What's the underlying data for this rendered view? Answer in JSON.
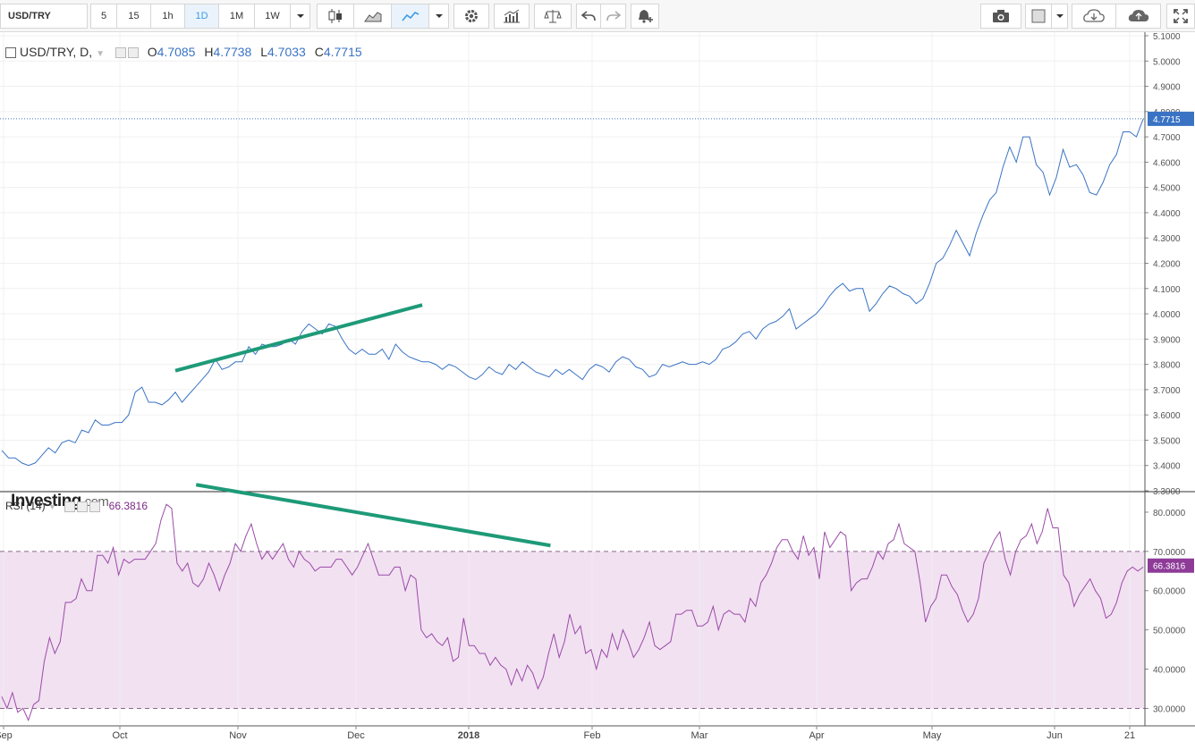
{
  "toolbar": {
    "symbol": "USD/TRY",
    "intervals": [
      "5",
      "15",
      "1h",
      "1D",
      "1M",
      "1W"
    ],
    "active_interval": "1D"
  },
  "legend": {
    "title": "USD/TRY, D,",
    "open_label": "O",
    "open": "4.7085",
    "high_label": "H",
    "high": "4.7738",
    "low_label": "L",
    "low": "4.7033",
    "close_label": "C",
    "close": "4.7715"
  },
  "rsi_legend": {
    "title": "RSI (14)",
    "value": "66.3816"
  },
  "logo": {
    "main": "Investing",
    "suffix": ".com"
  },
  "colors": {
    "price_line": "#3a73c4",
    "rsi_line": "#9c4aa8",
    "rsi_band": "#f1e1f1",
    "trend_line": "#1e9a78",
    "price_badge": "#3a73c4",
    "rsi_badge": "#8e3b98"
  },
  "chart_data": [
    {
      "type": "line",
      "series": [
        {
          "values": [
            3.46,
            3.43,
            3.43,
            3.41,
            3.4,
            3.41,
            3.44,
            3.47,
            3.45,
            3.49,
            3.5,
            3.49,
            3.54,
            3.53,
            3.58,
            3.56,
            3.56,
            3.57,
            3.57,
            3.6,
            3.69,
            3.71,
            3.65,
            3.65,
            3.64,
            3.66,
            3.69,
            3.65,
            3.68,
            3.71,
            3.74,
            3.77,
            3.82,
            3.78,
            3.79,
            3.81,
            3.81,
            3.87,
            3.84,
            3.88,
            3.87,
            3.87,
            3.88,
            3.9,
            3.88,
            3.93,
            3.96,
            3.94,
            3.92,
            3.96,
            3.95,
            3.9,
            3.86,
            3.84,
            3.86,
            3.84,
            3.84,
            3.86,
            3.82,
            3.88,
            3.85,
            3.83,
            3.82,
            3.81,
            3.81,
            3.8,
            3.78,
            3.8,
            3.79,
            3.77,
            3.75,
            3.74,
            3.76,
            3.79,
            3.77,
            3.76,
            3.8,
            3.78,
            3.81,
            3.79,
            3.77,
            3.76,
            3.75,
            3.78,
            3.76,
            3.78,
            3.76,
            3.74,
            3.78,
            3.8,
            3.79,
            3.77,
            3.81,
            3.83,
            3.82,
            3.79,
            3.78,
            3.75,
            3.76,
            3.8,
            3.79,
            3.8,
            3.81,
            3.8,
            3.8,
            3.81,
            3.8,
            3.82,
            3.86,
            3.87,
            3.89,
            3.92,
            3.93,
            3.9,
            3.94,
            3.96,
            3.97,
            3.99,
            4.02,
            3.94,
            3.96,
            3.98,
            4.0,
            4.03,
            4.07,
            4.1,
            4.12,
            4.09,
            4.1,
            4.1,
            4.01,
            4.04,
            4.08,
            4.11,
            4.1,
            4.08,
            4.07,
            4.04,
            4.06,
            4.12,
            4.2,
            4.22,
            4.27,
            4.33,
            4.28,
            4.23,
            4.32,
            4.39,
            4.45,
            4.48,
            4.58,
            4.66,
            4.6,
            4.7,
            4.7,
            4.59,
            4.56,
            4.47,
            4.54,
            4.65,
            4.58,
            4.59,
            4.55,
            4.48,
            4.47,
            4.52,
            4.59,
            4.63,
            4.72,
            4.72,
            4.7,
            4.77
          ]
        }
      ],
      "ylim": [
        3.3,
        5.1
      ],
      "y_ticks": [
        "5.1000",
        "5.0000",
        "4.9000",
        "4.8000",
        "4.7000",
        "4.6000",
        "4.5000",
        "4.4000",
        "4.3000",
        "4.2000",
        "4.1000",
        "4.0000",
        "3.9000",
        "3.8000",
        "3.7000",
        "3.6000",
        "3.5000",
        "3.4000",
        "3.3000"
      ],
      "last_value_label": "4.7715",
      "trend_line": {
        "from": [
          26,
          3.775
        ],
        "to": [
          63,
          4.035
        ]
      }
    },
    {
      "type": "line",
      "title": "RSI (14)",
      "series": [
        {
          "values": [
            33,
            30,
            34,
            29,
            30,
            27,
            31,
            32,
            42,
            48,
            44,
            47,
            57,
            57,
            58,
            63,
            60,
            60,
            69,
            69,
            67,
            71,
            64,
            68,
            67,
            68,
            68,
            68,
            70,
            72,
            78,
            82,
            81,
            67,
            65,
            67,
            62,
            61,
            63,
            67,
            64,
            60,
            64,
            67,
            72,
            70,
            74,
            77,
            72,
            68,
            70,
            68,
            70,
            72,
            68,
            66,
            70,
            68,
            67,
            65,
            66,
            66,
            66,
            68,
            68,
            66,
            64,
            66,
            69,
            72,
            68,
            64,
            64,
            64,
            66,
            66,
            60,
            64,
            63,
            50,
            48,
            49,
            47,
            46,
            48,
            42,
            43,
            53,
            46,
            46,
            44,
            44,
            41,
            43,
            41,
            40,
            36,
            40,
            37,
            41,
            39,
            35,
            38,
            44,
            49,
            43,
            47,
            54,
            49,
            51,
            44,
            45,
            40,
            45,
            43,
            49,
            45,
            50,
            47,
            43,
            45,
            48,
            52,
            46,
            45,
            46,
            47,
            54,
            54,
            55,
            55,
            51,
            51,
            52,
            56,
            50,
            54,
            55,
            54,
            54,
            52,
            58,
            56,
            62,
            64,
            67,
            71,
            73,
            73,
            70,
            68,
            74,
            69,
            71,
            63,
            75,
            71,
            73,
            75,
            74,
            60,
            62,
            63,
            63,
            66,
            70,
            68,
            72,
            73,
            77,
            72,
            71,
            70,
            62,
            52,
            56,
            58,
            64,
            64,
            61,
            59,
            55,
            52,
            54,
            58,
            67,
            70,
            73,
            75,
            68,
            64,
            70,
            73,
            74,
            77,
            72,
            75,
            81,
            76,
            76,
            64,
            62,
            56,
            59,
            61,
            63,
            60,
            58,
            53,
            54,
            57,
            62,
            65,
            66,
            65,
            66
          ]
        }
      ],
      "ylim": [
        26,
        85
      ],
      "y_ticks": [
        "80.0000",
        "70.0000",
        "60.0000",
        "50.0000",
        "40.0000",
        "30.0000"
      ],
      "band": [
        30,
        70
      ],
      "last_value_label": "66.3816",
      "trend_line": {
        "from": [
          0.17,
          87
        ],
        "to": [
          0.48,
          71.5
        ]
      }
    }
  ],
  "x_axis": {
    "labels": [
      "Sep",
      "Oct",
      "Nov",
      "Dec",
      "2018",
      "Feb",
      "Mar",
      "Apr",
      "May",
      "Jun",
      "21"
    ]
  }
}
